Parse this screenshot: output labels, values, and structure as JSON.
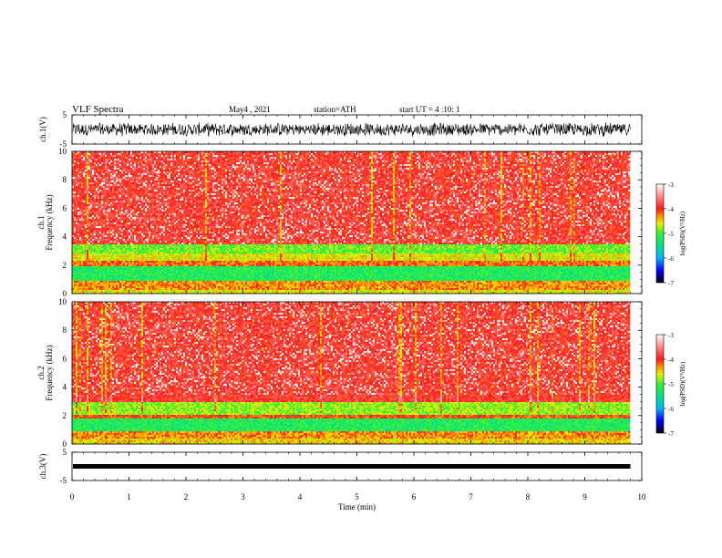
{
  "header": {
    "title": "VLF Spectra",
    "date": "May4 , 2021",
    "station": "station=ATH",
    "start": "start UT = 4 :10: 1"
  },
  "chart_data": [
    {
      "type": "line",
      "id": "ch1_waveform",
      "ylabel": "ch.1(V)",
      "ylim": [
        -5,
        5
      ],
      "yticks": [
        "5",
        "-5"
      ],
      "xlim": [
        0,
        10
      ],
      "series": [
        {
          "amplitude": 2.5,
          "color": "#000000",
          "x_end": 9.8
        }
      ]
    },
    {
      "type": "heatmap",
      "id": "ch1_spectrogram",
      "ylabel": "ch.1\nFrequency (kHz)",
      "ylim": [
        0,
        10
      ],
      "yticks": [
        "0",
        "2",
        "4",
        "6",
        "8",
        "10"
      ],
      "xlim": [
        0,
        10
      ],
      "x_end": 9.8,
      "bands": [
        {
          "f0": 0.0,
          "f1": 0.3,
          "level": -4.6
        },
        {
          "f0": 0.3,
          "f1": 0.9,
          "level": -4.3
        },
        {
          "f0": 0.9,
          "f1": 1.9,
          "level": -5.2
        },
        {
          "f0": 1.9,
          "f1": 2.3,
          "level": -4.2
        },
        {
          "f0": 2.3,
          "f1": 2.8,
          "level": -4.6
        },
        {
          "f0": 2.8,
          "f1": 3.5,
          "level": -4.9
        },
        {
          "f0": 3.5,
          "f1": 10.0,
          "level": -3.9
        }
      ]
    },
    {
      "type": "heatmap",
      "id": "ch2_spectrogram",
      "ylabel": "ch.2\nFrequency (kHz)",
      "ylim": [
        0,
        10
      ],
      "yticks": [
        "0",
        "2",
        "4",
        "6",
        "8",
        "10"
      ],
      "xlim": [
        0,
        10
      ],
      "x_end": 9.8,
      "bands": [
        {
          "f0": 0.0,
          "f1": 0.4,
          "level": -4.5
        },
        {
          "f0": 0.4,
          "f1": 0.9,
          "level": -4.3
        },
        {
          "f0": 0.9,
          "f1": 1.8,
          "level": -5.2
        },
        {
          "f0": 1.8,
          "f1": 2.1,
          "level": -4.1
        },
        {
          "f0": 2.1,
          "f1": 3.0,
          "level": -4.8
        },
        {
          "f0": 3.0,
          "f1": 10.0,
          "level": -3.9
        }
      ]
    },
    {
      "type": "line",
      "id": "ch3_waveform",
      "ylabel": "ch.3(V)",
      "ylim": [
        -5,
        5
      ],
      "yticks": [
        "5",
        "-5"
      ],
      "xlim": [
        0,
        10
      ],
      "xticks": [
        "0",
        "1",
        "2",
        "3",
        "4",
        "5",
        "6",
        "7",
        "8",
        "9",
        "10"
      ],
      "xlabel": "Time (min)",
      "series": [
        {
          "value": 0,
          "color": "#000000",
          "x_end": 9.8
        }
      ]
    }
  ],
  "colorbar": {
    "label": "log(PSD)(V²/Hz)",
    "range": [
      -7,
      -3
    ],
    "ticks": [
      "-3",
      "-4",
      "-5",
      "-6",
      "-7"
    ],
    "stops": [
      {
        "v": -7.0,
        "c": "#000000"
      },
      {
        "v": -6.5,
        "c": "#0000ff"
      },
      {
        "v": -6.0,
        "c": "#00b4ff"
      },
      {
        "v": -5.5,
        "c": "#00e08a"
      },
      {
        "v": -5.0,
        "c": "#3aee3a"
      },
      {
        "v": -4.6,
        "c": "#e6f000"
      },
      {
        "v": -4.3,
        "c": "#ff9000"
      },
      {
        "v": -4.0,
        "c": "#ff1c1c"
      },
      {
        "v": -3.5,
        "c": "#ff8a8a"
      },
      {
        "v": -3.0,
        "c": "#ffffff"
      }
    ]
  }
}
